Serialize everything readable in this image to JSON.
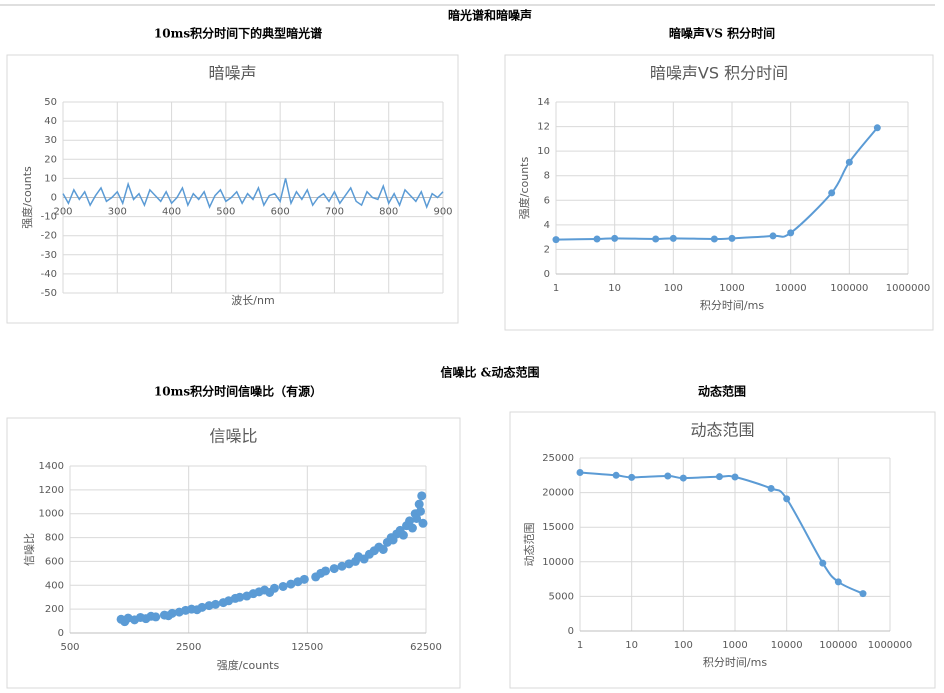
{
  "sections": [
    {
      "title": "暗光谱和暗噪声",
      "chart_titles": [
        "10ms积分时间下的典型暗光谱",
        "暗噪声VS 积分时间"
      ]
    },
    {
      "title": "信噪比 &动态范围",
      "chart_titles": [
        "10ms积分时间信噪比（有源）",
        "动态范围"
      ]
    }
  ],
  "chart_data": [
    {
      "type": "line",
      "title": "暗噪声",
      "xlabel": "波长/nm",
      "ylabel": "强度/counts",
      "color": "#5b9bd5",
      "grid": true,
      "xlog": false,
      "smooth": false,
      "markers": false,
      "xlim": [
        200,
        900
      ],
      "xticks": [
        200,
        300,
        400,
        500,
        600,
        700,
        800,
        900
      ],
      "ylim": [
        -50,
        50
      ],
      "yticks": [
        -50,
        -40,
        -30,
        -20,
        -10,
        0,
        10,
        20,
        30,
        40,
        50
      ],
      "x": [
        200,
        210,
        220,
        230,
        240,
        250,
        260,
        270,
        280,
        290,
        300,
        310,
        320,
        330,
        340,
        350,
        360,
        370,
        380,
        390,
        400,
        410,
        420,
        430,
        440,
        450,
        460,
        470,
        480,
        490,
        500,
        510,
        520,
        530,
        540,
        550,
        560,
        570,
        580,
        590,
        600,
        610,
        620,
        630,
        640,
        650,
        660,
        670,
        680,
        690,
        700,
        710,
        720,
        730,
        740,
        750,
        760,
        770,
        780,
        790,
        800,
        810,
        820,
        830,
        840,
        850,
        860,
        870,
        880,
        890,
        900
      ],
      "values": [
        2,
        -3,
        4,
        -1,
        3,
        -4,
        1,
        5,
        -2,
        0,
        3,
        -3,
        7,
        -1,
        2,
        -4,
        4,
        1,
        -2,
        3,
        -3,
        0,
        5,
        -4,
        2,
        -1,
        3,
        -5,
        1,
        4,
        -2,
        0,
        3,
        -3,
        2,
        -1,
        5,
        -4,
        1,
        2,
        -2,
        10,
        -3,
        3,
        -1,
        4,
        -4,
        0,
        2,
        -2,
        3,
        -3,
        1,
        5,
        -2,
        -4,
        3,
        0,
        -1,
        6,
        -3,
        2,
        -4,
        4,
        1,
        -2,
        3,
        -5,
        2,
        0,
        3
      ]
    },
    {
      "type": "line",
      "title": "暗噪声VS 积分时间",
      "xlabel": "积分时间/ms",
      "ylabel": "强度/counts",
      "color": "#5b9bd5",
      "grid": true,
      "xlog": true,
      "smooth": true,
      "markers": true,
      "xlim": [
        1,
        1000000
      ],
      "xticks": [
        1,
        10,
        100,
        1000,
        10000,
        100000,
        1000000
      ],
      "ylim": [
        0,
        14
      ],
      "yticks": [
        0,
        2,
        4,
        6,
        8,
        10,
        12,
        14
      ],
      "x": [
        1,
        5,
        10,
        50,
        100,
        500,
        1000,
        5000,
        10000,
        50000,
        100000,
        300000
      ],
      "values": [
        2.8,
        2.85,
        2.9,
        2.85,
        2.9,
        2.85,
        2.9,
        3.1,
        3.35,
        6.6,
        9.1,
        11.9
      ]
    },
    {
      "type": "scatter",
      "title": "信噪比",
      "xlabel": "强度/counts",
      "ylabel": "信噪比",
      "color": "#5b9bd5",
      "grid": true,
      "xlog": true,
      "xlim": [
        500,
        62500
      ],
      "xticks": [
        500,
        2500,
        12500,
        62500
      ],
      "ylim": [
        0,
        1400
      ],
      "yticks": [
        0,
        200,
        400,
        600,
        800,
        1000,
        1200,
        1400
      ],
      "x": [
        1000,
        1050,
        1100,
        1200,
        1300,
        1400,
        1500,
        1600,
        1800,
        1900,
        2000,
        2200,
        2400,
        2600,
        2800,
        3000,
        3300,
        3600,
        4000,
        4300,
        4700,
        5000,
        5500,
        6000,
        6500,
        7000,
        7500,
        8000,
        9000,
        10000,
        11000,
        12000,
        14000,
        15000,
        16000,
        18000,
        20000,
        22000,
        24000,
        25000,
        27000,
        29000,
        31000,
        33000,
        35000,
        37000,
        39000,
        40000,
        42000,
        44000,
        46000,
        48000,
        50000,
        52000,
        54000,
        55000,
        57000,
        58000,
        59000,
        60000
      ],
      "values": [
        115,
        95,
        125,
        110,
        130,
        120,
        140,
        135,
        150,
        145,
        165,
        175,
        190,
        200,
        195,
        215,
        230,
        240,
        255,
        270,
        290,
        300,
        310,
        330,
        345,
        360,
        340,
        375,
        390,
        410,
        430,
        450,
        470,
        500,
        520,
        540,
        560,
        580,
        600,
        640,
        620,
        660,
        690,
        720,
        700,
        760,
        800,
        780,
        830,
        860,
        820,
        900,
        940,
        880,
        1000,
        960,
        1080,
        1020,
        1150,
        920
      ]
    },
    {
      "type": "line",
      "title": "动态范围",
      "xlabel": "积分时间/ms",
      "ylabel": "动态范围",
      "color": "#5b9bd5",
      "grid": true,
      "xlog": true,
      "smooth": true,
      "markers": true,
      "xlim": [
        1,
        1000000
      ],
      "xticks": [
        1,
        10,
        100,
        1000,
        10000,
        100000,
        1000000
      ],
      "ylim": [
        0,
        25000
      ],
      "yticks": [
        0,
        5000,
        10000,
        15000,
        20000,
        25000
      ],
      "x": [
        1,
        5,
        10,
        50,
        100,
        500,
        1000,
        5000,
        10000,
        50000,
        100000,
        300000
      ],
      "values": [
        22900,
        22500,
        22200,
        22400,
        22100,
        22300,
        22250,
        20600,
        19100,
        9800,
        7100,
        5400
      ]
    }
  ]
}
